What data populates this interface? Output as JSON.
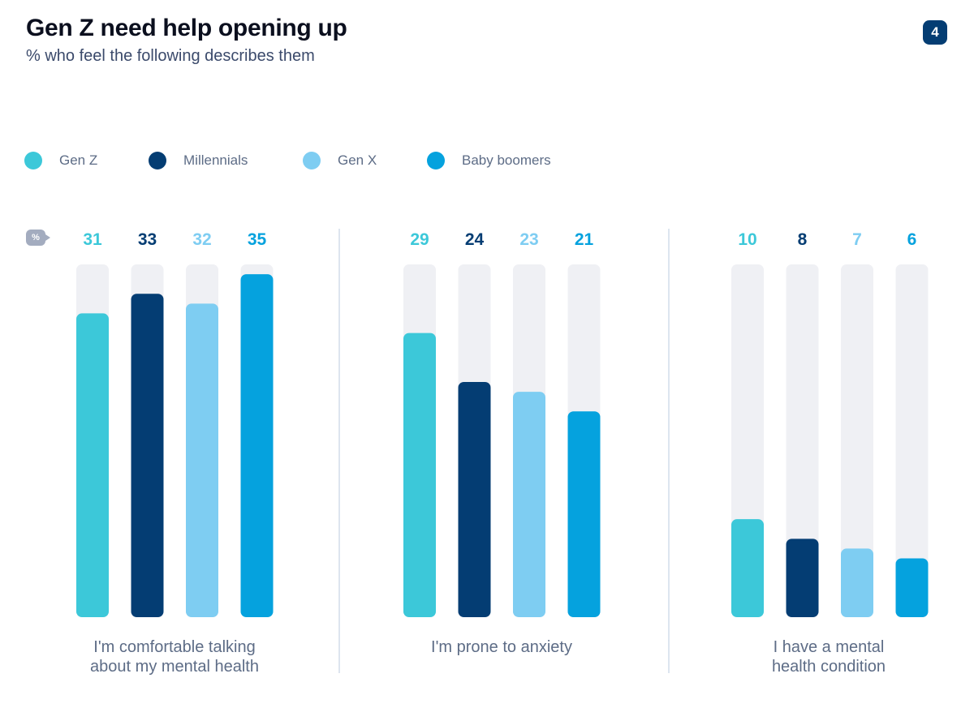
{
  "header": {
    "title": "Gen Z need help opening up",
    "subtitle": "% who feel the following describes them",
    "page_number": "4"
  },
  "unit_badge": "%",
  "legend": [
    {
      "label": "Gen Z",
      "color": "#3cc8d9"
    },
    {
      "label": "Millennials",
      "color": "#043d73"
    },
    {
      "label": "Gen X",
      "color": "#7ecdf2"
    },
    {
      "label": "Baby boomers",
      "color": "#05a2de"
    }
  ],
  "colors": {
    "track": "#eff0f4"
  },
  "chart_data": {
    "type": "bar",
    "categories": [
      "I'm comfortable talking\nabout my mental health",
      "I'm prone to anxiety",
      "I have a mental\nhealth condition"
    ],
    "series": [
      {
        "name": "Gen Z",
        "values": [
          31,
          29,
          10
        ]
      },
      {
        "name": "Millennials",
        "values": [
          33,
          24,
          8
        ]
      },
      {
        "name": "Gen X",
        "values": [
          32,
          23,
          7
        ]
      },
      {
        "name": "Baby boomers",
        "values": [
          35,
          21,
          6
        ]
      }
    ],
    "ylim": [
      0,
      36
    ],
    "grid": false,
    "legend_position": "top-left"
  }
}
